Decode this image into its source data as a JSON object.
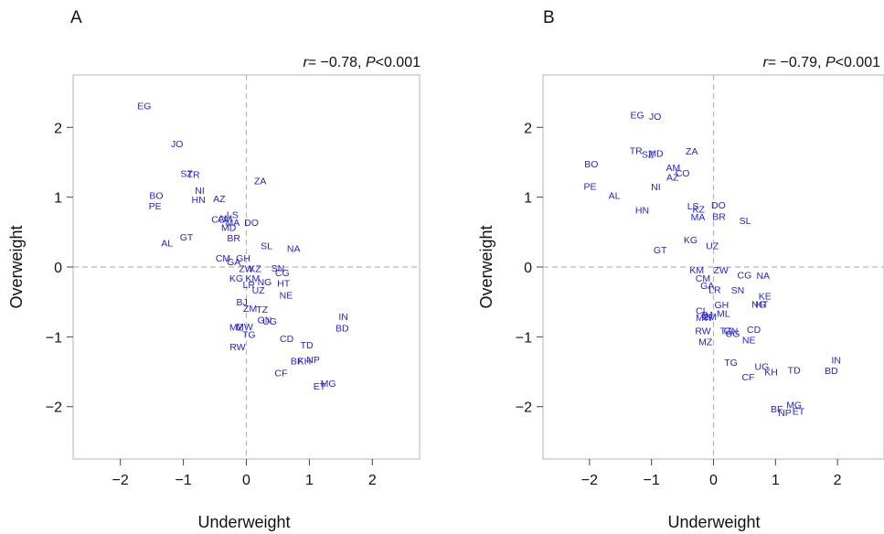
{
  "chart_data": [
    {
      "type": "scatter",
      "panel": "A",
      "annotation": {
        "r_label": "r",
        "r_value": "= −0.78, ",
        "p_label": "P",
        "p_value": "<0.001"
      },
      "xlabel": "Underweight",
      "ylabel": "Overweight",
      "xlim": [
        -2.75,
        2.75
      ],
      "ylim": [
        -2.75,
        2.75
      ],
      "xticks": [
        -2,
        -1,
        0,
        1,
        2
      ],
      "yticks": [
        -2,
        -1,
        0,
        1,
        2
      ],
      "tick_labels": [
        "−2",
        "−1",
        "0",
        "1",
        "2"
      ],
      "zero_lines": true,
      "grid": false,
      "points": [
        {
          "label": "EG",
          "x": -1.62,
          "y": 2.31
        },
        {
          "label": "JO",
          "x": -1.1,
          "y": 1.77
        },
        {
          "label": "SZ",
          "x": -0.95,
          "y": 1.34
        },
        {
          "label": "TR",
          "x": -0.84,
          "y": 1.33
        },
        {
          "label": "NI",
          "x": -0.74,
          "y": 1.1
        },
        {
          "label": "HN",
          "x": -0.76,
          "y": 0.97
        },
        {
          "label": "AZ",
          "x": -0.43,
          "y": 0.98
        },
        {
          "label": "BO",
          "x": -1.43,
          "y": 1.03
        },
        {
          "label": "PE",
          "x": -1.45,
          "y": 0.88
        },
        {
          "label": "ZA",
          "x": 0.22,
          "y": 1.24
        },
        {
          "label": "LS",
          "x": -0.22,
          "y": 0.75
        },
        {
          "label": "CO",
          "x": -0.44,
          "y": 0.69
        },
        {
          "label": "AM",
          "x": -0.34,
          "y": 0.7
        },
        {
          "label": "MA",
          "x": -0.22,
          "y": 0.64
        },
        {
          "label": "MD",
          "x": -0.28,
          "y": 0.57
        },
        {
          "label": "DO",
          "x": 0.08,
          "y": 0.64
        },
        {
          "label": "BR",
          "x": -0.2,
          "y": 0.42
        },
        {
          "label": "GT",
          "x": -0.95,
          "y": 0.43
        },
        {
          "label": "AL",
          "x": -1.26,
          "y": 0.35
        },
        {
          "label": "SL",
          "x": 0.32,
          "y": 0.31
        },
        {
          "label": "NA",
          "x": 0.75,
          "y": 0.27
        },
        {
          "label": "CM",
          "x": -0.37,
          "y": 0.13
        },
        {
          "label": "GH",
          "x": -0.05,
          "y": 0.13
        },
        {
          "label": "GA",
          "x": -0.2,
          "y": 0.08
        },
        {
          "label": "SN",
          "x": 0.5,
          "y": -0.01
        },
        {
          "label": "ZW",
          "x": 0.0,
          "y": -0.02
        },
        {
          "label": "KZ",
          "x": 0.14,
          "y": -0.02
        },
        {
          "label": "CG",
          "x": 0.57,
          "y": -0.08
        },
        {
          "label": "KG",
          "x": -0.16,
          "y": -0.16
        },
        {
          "label": "KM",
          "x": 0.1,
          "y": -0.16
        },
        {
          "label": "NG",
          "x": 0.29,
          "y": -0.21
        },
        {
          "label": "HT",
          "x": 0.59,
          "y": -0.23
        },
        {
          "label": "LR",
          "x": 0.04,
          "y": -0.25
        },
        {
          "label": "UZ",
          "x": 0.19,
          "y": -0.33
        },
        {
          "label": "NE",
          "x": 0.63,
          "y": -0.4
        },
        {
          "label": "BJ",
          "x": -0.07,
          "y": -0.5
        },
        {
          "label": "ZM",
          "x": 0.06,
          "y": -0.59
        },
        {
          "label": "TZ",
          "x": 0.25,
          "y": -0.6
        },
        {
          "label": "GN",
          "x": 0.29,
          "y": -0.75
        },
        {
          "label": "UG",
          "x": 0.37,
          "y": -0.77
        },
        {
          "label": "MZ",
          "x": -0.16,
          "y": -0.86
        },
        {
          "label": "MW",
          "x": -0.03,
          "y": -0.85
        },
        {
          "label": "TG",
          "x": 0.04,
          "y": -0.96
        },
        {
          "label": "RW",
          "x": -0.14,
          "y": -1.14
        },
        {
          "label": "CD",
          "x": 0.64,
          "y": -1.02
        },
        {
          "label": "IN",
          "x": 1.54,
          "y": -0.71
        },
        {
          "label": "BD",
          "x": 1.52,
          "y": -0.87
        },
        {
          "label": "TD",
          "x": 0.96,
          "y": -1.11
        },
        {
          "label": "BF",
          "x": 0.8,
          "y": -1.34
        },
        {
          "label": "KH",
          "x": 0.92,
          "y": -1.34
        },
        {
          "label": "NP",
          "x": 1.06,
          "y": -1.32
        },
        {
          "label": "CF",
          "x": 0.55,
          "y": -1.51
        },
        {
          "label": "MG",
          "x": 1.3,
          "y": -1.66
        },
        {
          "label": "ET",
          "x": 1.16,
          "y": -1.7
        }
      ]
    },
    {
      "type": "scatter",
      "panel": "B",
      "annotation": {
        "r_label": "r",
        "r_value": "= −0.79, ",
        "p_label": "P",
        "p_value": "<0.001"
      },
      "xlabel": "Underweight",
      "ylabel": "Overweight",
      "xlim": [
        -2.75,
        2.75
      ],
      "ylim": [
        -2.75,
        2.75
      ],
      "xticks": [
        -2,
        -1,
        0,
        1,
        2
      ],
      "yticks": [
        -2,
        -1,
        0,
        1,
        2
      ],
      "tick_labels": [
        "−2",
        "−1",
        "0",
        "1",
        "2"
      ],
      "zero_lines": true,
      "grid": false,
      "points": [
        {
          "label": "EG",
          "x": -1.23,
          "y": 2.18
        },
        {
          "label": "JO",
          "x": -0.94,
          "y": 2.16
        },
        {
          "label": "TR",
          "x": -1.25,
          "y": 1.67
        },
        {
          "label": "SZ",
          "x": -1.06,
          "y": 1.62
        },
        {
          "label": "MD",
          "x": -0.93,
          "y": 1.63
        },
        {
          "label": "ZA",
          "x": -0.35,
          "y": 1.66
        },
        {
          "label": "BO",
          "x": -1.97,
          "y": 1.48
        },
        {
          "label": "AM",
          "x": -0.65,
          "y": 1.43
        },
        {
          "label": "CO",
          "x": -0.5,
          "y": 1.35
        },
        {
          "label": "AZ",
          "x": -0.66,
          "y": 1.29
        },
        {
          "label": "NI",
          "x": -0.93,
          "y": 1.15
        },
        {
          "label": "PE",
          "x": -1.99,
          "y": 1.16
        },
        {
          "label": "AL",
          "x": -1.6,
          "y": 1.03
        },
        {
          "label": "HN",
          "x": -1.15,
          "y": 0.82
        },
        {
          "label": "LS",
          "x": -0.33,
          "y": 0.88
        },
        {
          "label": "KZ",
          "x": -0.24,
          "y": 0.83
        },
        {
          "label": "DO",
          "x": 0.08,
          "y": 0.89
        },
        {
          "label": "MA",
          "x": -0.25,
          "y": 0.72
        },
        {
          "label": "BR",
          "x": 0.09,
          "y": 0.73
        },
        {
          "label": "SL",
          "x": 0.51,
          "y": 0.67
        },
        {
          "label": "KG",
          "x": -0.37,
          "y": 0.39
        },
        {
          "label": "UZ",
          "x": -0.02,
          "y": 0.31
        },
        {
          "label": "GT",
          "x": -0.86,
          "y": 0.25
        },
        {
          "label": "KM",
          "x": -0.27,
          "y": -0.04
        },
        {
          "label": "ZW",
          "x": 0.12,
          "y": -0.04
        },
        {
          "label": "CG",
          "x": 0.5,
          "y": -0.11
        },
        {
          "label": "NA",
          "x": 0.8,
          "y": -0.12
        },
        {
          "label": "CM",
          "x": -0.17,
          "y": -0.16
        },
        {
          "label": "GA",
          "x": -0.1,
          "y": -0.26
        },
        {
          "label": "LR",
          "x": 0.02,
          "y": -0.32
        },
        {
          "label": "SN",
          "x": 0.39,
          "y": -0.33
        },
        {
          "label": "KE",
          "x": 0.83,
          "y": -0.41
        },
        {
          "label": "NG",
          "x": 0.73,
          "y": -0.53
        },
        {
          "label": "HT",
          "x": 0.78,
          "y": -0.53
        },
        {
          "label": "GH",
          "x": 0.13,
          "y": -0.54
        },
        {
          "label": "CI",
          "x": -0.21,
          "y": -0.62
        },
        {
          "label": "BJ",
          "x": -0.1,
          "y": -0.68
        },
        {
          "label": "ML",
          "x": 0.16,
          "y": -0.66
        },
        {
          "label": "MW",
          "x": -0.15,
          "y": -0.72
        },
        {
          "label": "ZM",
          "x": -0.06,
          "y": -0.71
        },
        {
          "label": "RW",
          "x": -0.17,
          "y": -0.91
        },
        {
          "label": "TZ",
          "x": 0.2,
          "y": -0.91
        },
        {
          "label": "GN",
          "x": 0.28,
          "y": -0.91
        },
        {
          "label": "UG",
          "x": 0.31,
          "y": -0.95
        },
        {
          "label": "CD",
          "x": 0.65,
          "y": -0.89
        },
        {
          "label": "NE",
          "x": 0.57,
          "y": -1.04
        },
        {
          "label": "MZ",
          "x": -0.13,
          "y": -1.07
        },
        {
          "label": "TG",
          "x": 0.28,
          "y": -1.36
        },
        {
          "label": "UG",
          "x": 0.78,
          "y": -1.42
        },
        {
          "label": "KH",
          "x": 0.93,
          "y": -1.5
        },
        {
          "label": "CF",
          "x": 0.56,
          "y": -1.57
        },
        {
          "label": "TD",
          "x": 1.3,
          "y": -1.47
        },
        {
          "label": "IN",
          "x": 1.98,
          "y": -1.33
        },
        {
          "label": "BD",
          "x": 1.9,
          "y": -1.48
        },
        {
          "label": "MG",
          "x": 1.3,
          "y": -1.97
        },
        {
          "label": "BF",
          "x": 1.02,
          "y": -2.03
        },
        {
          "label": "NP",
          "x": 1.15,
          "y": -2.08
        },
        {
          "label": "ET",
          "x": 1.37,
          "y": -2.06
        }
      ]
    }
  ]
}
